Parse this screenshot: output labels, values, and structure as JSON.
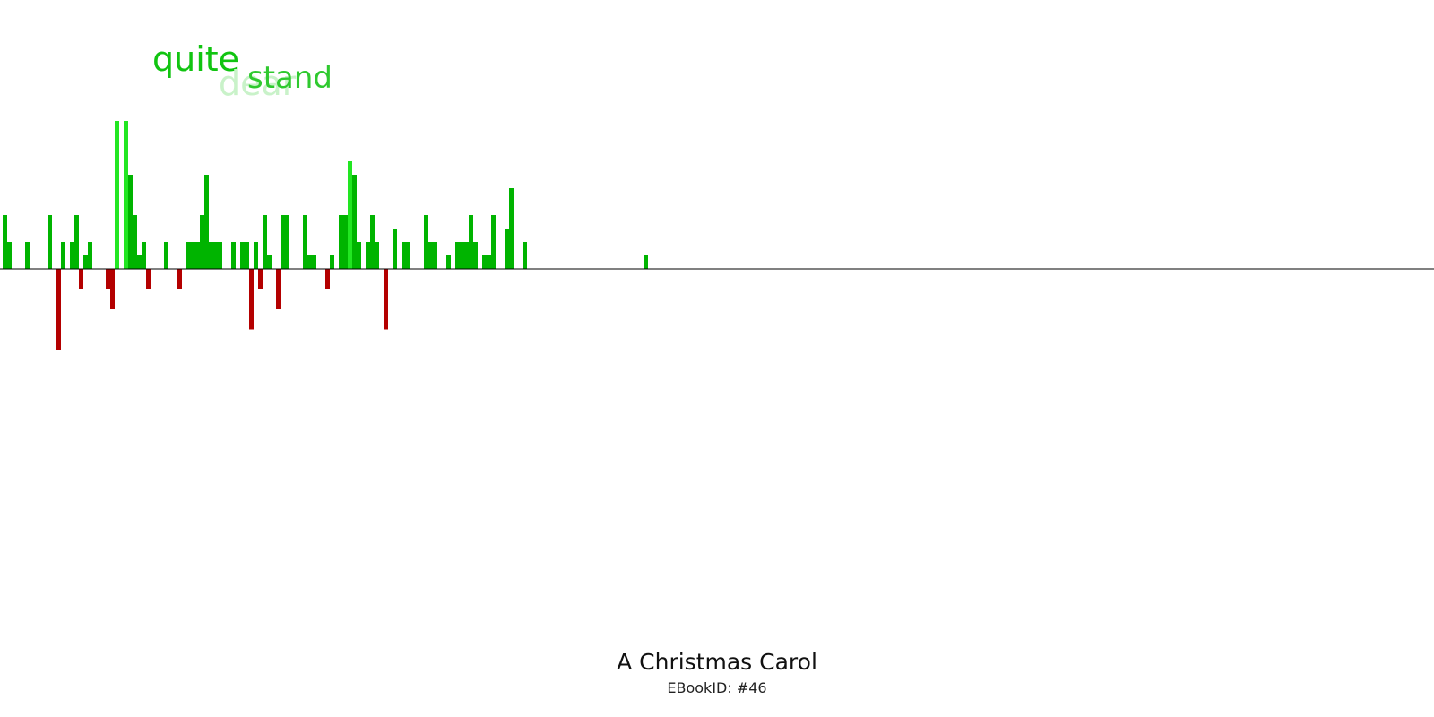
{
  "chart_data": {
    "type": "bar",
    "title": "A Christmas Carol",
    "subtitle": "EBookID: #46",
    "xlabel": "",
    "ylabel": "",
    "ylim": [
      -6,
      16
    ],
    "grid": false,
    "colors": {
      "positive": "#00b400",
      "positive_bright": "#22e622",
      "negative": "#b40000",
      "axis": "#000000"
    },
    "words": [
      {
        "text": "quite",
        "color": "#11c411"
      },
      {
        "text": "dear",
        "color": "#c9f2c9"
      },
      {
        "text": "stand",
        "color": "#2fc92f"
      }
    ],
    "series": [
      {
        "values": [
          4,
          2,
          0,
          0,
          0,
          2,
          0,
          0,
          0,
          0,
          4,
          0,
          -6,
          2,
          0,
          2,
          4,
          -1.5,
          1,
          2,
          0,
          0,
          0,
          -1.5,
          -3,
          11,
          0,
          11,
          7,
          4,
          1,
          2,
          -1.5,
          0,
          0,
          0,
          2,
          0,
          0,
          -1.5,
          0,
          2,
          2,
          2,
          4,
          7,
          2,
          2,
          2,
          0,
          0,
          2,
          0,
          2,
          2,
          -4.5,
          2,
          -1.5,
          4,
          1,
          0,
          -3,
          4,
          4,
          0,
          0,
          0,
          4,
          1,
          1,
          0,
          0,
          -1.5,
          1,
          0,
          4,
          4,
          8,
          7,
          2,
          0,
          2,
          4,
          2,
          0,
          -4.5,
          0,
          3,
          0,
          2,
          2,
          0,
          0,
          0,
          4,
          2,
          2,
          0,
          0,
          1,
          0,
          2,
          2,
          2,
          4,
          2,
          0,
          1,
          1,
          4,
          0,
          0,
          3,
          6,
          0,
          0,
          2,
          0,
          0,
          0,
          0,
          0,
          0,
          0,
          0,
          0,
          0,
          0,
          0,
          0,
          0,
          0,
          0,
          0,
          0,
          0,
          0,
          0,
          0,
          0,
          0,
          0,
          0,
          1,
          0,
          0,
          0,
          0,
          0,
          0,
          0,
          0,
          0,
          0,
          0,
          0,
          0,
          0,
          0,
          0,
          0,
          0,
          0,
          0,
          0,
          0,
          0,
          0,
          0,
          0,
          0,
          0,
          0,
          0,
          0,
          0,
          0,
          0,
          0,
          0,
          0,
          0,
          0,
          0,
          0,
          0,
          0,
          0,
          0,
          0,
          0,
          0,
          0,
          0,
          0,
          0,
          0,
          0,
          0,
          0,
          0,
          0,
          0,
          0,
          0,
          0,
          0,
          0,
          0,
          0,
          0,
          0,
          0,
          0,
          0,
          0,
          0,
          0,
          0,
          0,
          0,
          0,
          0,
          0,
          0,
          0,
          0,
          0,
          0,
          0,
          0,
          0,
          0,
          0,
          0,
          0,
          0,
          0,
          0,
          0,
          0,
          0,
          0,
          0,
          0,
          0,
          0,
          0,
          0,
          0,
          0,
          0,
          0,
          0,
          0,
          0,
          0,
          0,
          0,
          0
        ]
      }
    ]
  },
  "overrides": {
    "values_tail": [
      0,
      0,
      0,
      0,
      0,
      0,
      0,
      0,
      0,
      0,
      0,
      0,
      0,
      0,
      0,
      0,
      0,
      0,
      0,
      0,
      0,
      0,
      0,
      0,
      0,
      0,
      0,
      0,
      0,
      0,
      0,
      0,
      0,
      0,
      0,
      0,
      0,
      0,
      0,
      0
    ]
  }
}
